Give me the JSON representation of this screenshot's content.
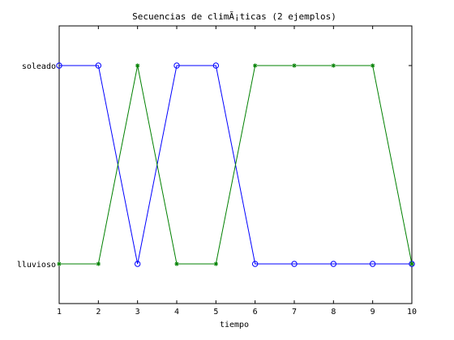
{
  "chart_data": {
    "type": "line",
    "title": "Secuencias de climÃ¡ticas (2 ejemplos)",
    "xlabel": "tiempo",
    "ylabel": "",
    "xlim": [
      1,
      10
    ],
    "ylim": [
      0.8,
      2.2
    ],
    "x": [
      1,
      2,
      3,
      4,
      5,
      6,
      7,
      8,
      9,
      10
    ],
    "x_ticks": [
      "1",
      "2",
      "3",
      "4",
      "5",
      "6",
      "7",
      "8",
      "9",
      "10"
    ],
    "y_ticks": [
      {
        "value": 1,
        "label": "lluvioso"
      },
      {
        "value": 2,
        "label": "soleado"
      }
    ],
    "grid": false,
    "series": [
      {
        "color": "#0000ff",
        "marker": "circle",
        "values": [
          2,
          2,
          1,
          2,
          2,
          1,
          1,
          1,
          1,
          1
        ]
      },
      {
        "color": "#008000",
        "marker": "star",
        "values": [
          1,
          1,
          2,
          1,
          1,
          2,
          2,
          2,
          2,
          1
        ]
      }
    ]
  }
}
